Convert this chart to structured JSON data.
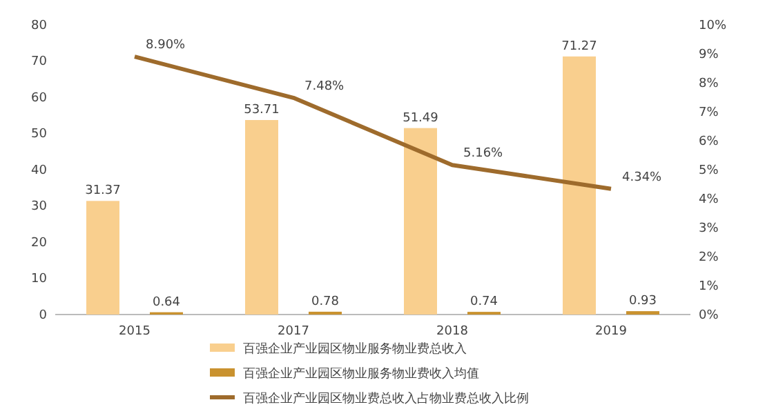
{
  "chart_data": {
    "type": "bar",
    "categories": [
      "2015",
      "2017",
      "2018",
      "2019"
    ],
    "series": [
      {
        "name": "百强企业产业园区物业服务物业费总收入",
        "color": "#f9cf8e",
        "values": [
          31.37,
          53.71,
          51.49,
          71.27
        ],
        "value_labels": [
          "31.37",
          "53.71",
          "51.49",
          "71.27"
        ]
      },
      {
        "name": "百强企业产业园区物业服务物业费收入均值",
        "color": "#c9922f",
        "values": [
          0.64,
          0.78,
          0.74,
          0.93
        ],
        "value_labels": [
          "0.64",
          "0.78",
          "0.74",
          "0.93"
        ]
      },
      {
        "name": "百强企业产业园区物业费总收入占物业费总收入比例",
        "type": "line",
        "axis": "y2",
        "color": "#9e6b2c",
        "values": [
          8.9,
          7.48,
          5.16,
          4.34
        ],
        "value_labels": [
          "8.90%",
          "7.48%",
          "5.16%",
          "4.34%"
        ]
      }
    ],
    "ylim": [
      0,
      80
    ],
    "yticks": [
      0,
      10,
      20,
      30,
      40,
      50,
      60,
      70,
      80
    ],
    "y2lim": [
      0,
      10
    ],
    "y2ticks": [
      {
        "value": 0,
        "label": "0%"
      },
      {
        "value": 1,
        "label": "1%"
      },
      {
        "value": 2,
        "label": "2%"
      },
      {
        "value": 3,
        "label": "3%"
      },
      {
        "value": 4,
        "label": "4%"
      },
      {
        "value": 5,
        "label": "5%"
      },
      {
        "value": 6,
        "label": "6%"
      },
      {
        "value": 7,
        "label": "7%"
      },
      {
        "value": 8,
        "label": "8%"
      },
      {
        "value": 9,
        "label": "9%"
      },
      {
        "value": 10,
        "label": "10%"
      }
    ],
    "grid": false,
    "legend": "bottom",
    "marker": "none"
  }
}
